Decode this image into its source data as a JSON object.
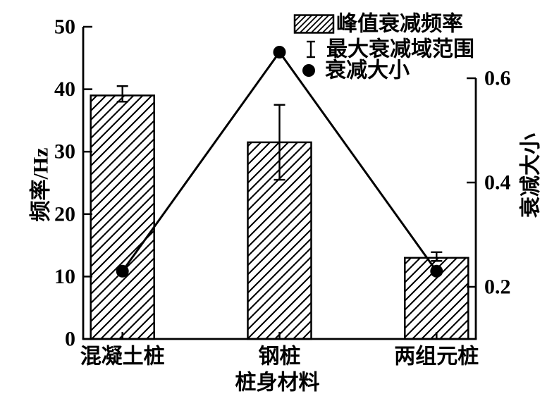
{
  "chart_data": {
    "type": "bar",
    "title": "",
    "categories": [
      "混凝土桩",
      "钢桩",
      "两组元桩"
    ],
    "xlabel": "桩身材料",
    "axes": {
      "left": {
        "label": "频率/Hz",
        "min": 0,
        "max": 50,
        "ticks": [
          "0",
          "10",
          "20",
          "30",
          "40",
          "50"
        ],
        "tick_values": [
          0,
          10,
          20,
          30,
          40,
          50
        ]
      },
      "right": {
        "label": "衰减大小",
        "min": 0.1,
        "max": 0.6,
        "ticks": [
          "0.2",
          "0.4",
          "0.6"
        ],
        "tick_values": [
          0.2,
          0.4,
          0.6
        ]
      }
    },
    "series": [
      {
        "name": "峰值衰减频率",
        "type": "bar",
        "axis": "left",
        "values": [
          39,
          31.5,
          13
        ]
      },
      {
        "name": "最大衰减域范围",
        "type": "errorbar",
        "axis": "left",
        "upper": [
          40.5,
          37.5,
          13.9
        ],
        "lower": [
          38,
          25.5,
          12.5
        ]
      },
      {
        "name": "衰减大小",
        "type": "line",
        "axis": "right",
        "values": [
          0.23,
          0.65,
          0.23
        ]
      }
    ],
    "legend": {
      "position": "top-right",
      "items": [
        {
          "symbol": "hatched-box",
          "label": "峰值衰减频率"
        },
        {
          "symbol": "error-bar",
          "label": "最大衰减域范围"
        },
        {
          "symbol": "dot",
          "label": "衰减大小"
        }
      ]
    },
    "grid": "off",
    "colors": {
      "foreground": "#000000",
      "background": "#ffffff"
    }
  }
}
